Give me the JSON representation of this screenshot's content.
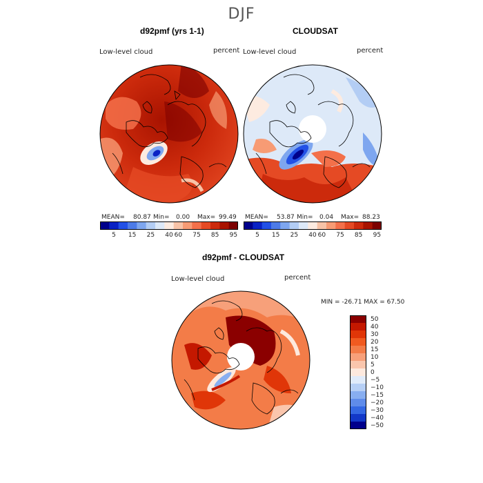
{
  "season": "DJF",
  "panels": {
    "model": {
      "title": "d92pmf (yrs 1-1)",
      "variable": "Low-level cloud",
      "units": "percent",
      "stats": {
        "mean_label": "MEAN=",
        "mean": "80.87",
        "min_label": "Min=",
        "min": "0.00",
        "max_label": "Max=",
        "max": "99.49"
      }
    },
    "obs": {
      "title": "CLOUDSAT",
      "variable": "Low-level cloud",
      "units": "percent",
      "stats": {
        "mean_label": "MEAN=",
        "mean": "53.87",
        "min_label": "Min=",
        "min": "0.04",
        "max_label": "Max=",
        "max": "88.23"
      }
    },
    "diff": {
      "title": "d92pmf - CLOUDSAT",
      "variable": "Low-level cloud",
      "units": "percent",
      "range_text": "MIN = -26.71 MAX =  67.50"
    }
  },
  "colorbars": {
    "absolute": {
      "labels": [
        "5",
        "15",
        "25",
        "40",
        "60",
        "75",
        "85",
        "95"
      ],
      "colors": [
        "#00008b",
        "#0a22c4",
        "#2250e6",
        "#4d7be8",
        "#7ea6ef",
        "#b3cdf4",
        "#dde9f8",
        "#fdebe0",
        "#f8c3a7",
        "#f79b74",
        "#f3704a",
        "#e54a24",
        "#cc2a0c",
        "#a81300",
        "#7c0000"
      ]
    },
    "difference": {
      "labels": [
        "50",
        "40",
        "30",
        "20",
        "15",
        "10",
        "5",
        "0",
        "−5",
        "−10",
        "−15",
        "−20",
        "−30",
        "−40",
        "−50"
      ],
      "colors": [
        "#8b0000",
        "#c41800",
        "#e03608",
        "#f05a20",
        "#f37c48",
        "#f7a07a",
        "#fac6ad",
        "#fde9de",
        "#e0ebfa",
        "#b6cff5",
        "#88aef0",
        "#5f8cea",
        "#3468e3",
        "#1238c8",
        "#00008b"
      ]
    }
  },
  "chart_data": [
    {
      "type": "heatmap",
      "title": "d92pmf (yrs 1-1)",
      "variable": "Low-level cloud",
      "units": "percent",
      "projection": "north-polar-stereographic",
      "stats": {
        "mean": 80.87,
        "min": 0.0,
        "max": 99.49
      },
      "color_levels": [
        5,
        15,
        25,
        40,
        60,
        75,
        85,
        95
      ]
    },
    {
      "type": "heatmap",
      "title": "CLOUDSAT",
      "variable": "Low-level cloud",
      "units": "percent",
      "projection": "north-polar-stereographic",
      "stats": {
        "mean": 53.87,
        "min": 0.04,
        "max": 88.23
      },
      "color_levels": [
        5,
        15,
        25,
        40,
        60,
        75,
        85,
        95
      ]
    },
    {
      "type": "heatmap",
      "title": "d92pmf - CLOUDSAT",
      "variable": "Low-level cloud",
      "units": "percent",
      "projection": "north-polar-stereographic",
      "stats": {
        "min": -26.71,
        "max": 67.5
      },
      "color_levels": [
        -50,
        -40,
        -30,
        -20,
        -15,
        -10,
        -5,
        0,
        5,
        10,
        15,
        20,
        30,
        40,
        50
      ]
    }
  ]
}
